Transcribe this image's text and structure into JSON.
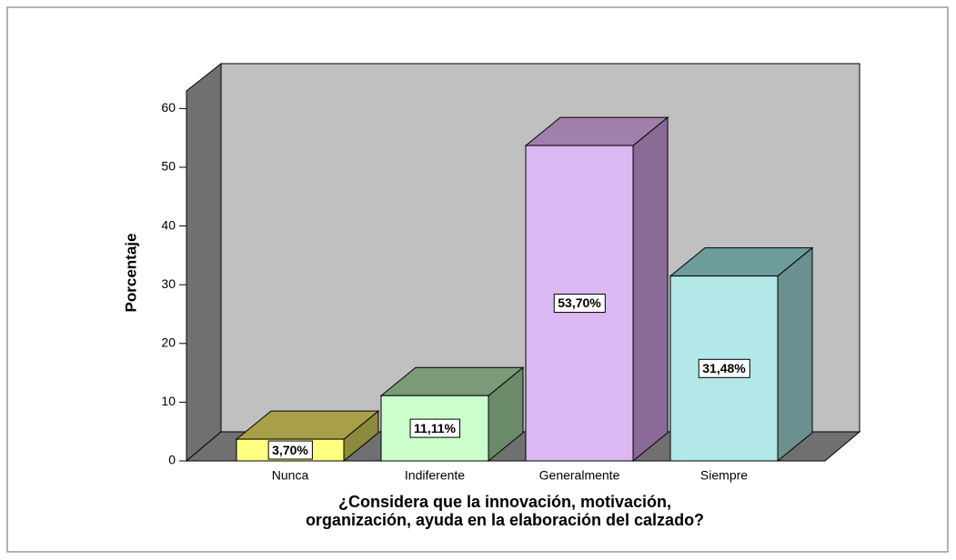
{
  "chart_data": {
    "type": "bar3d",
    "ylabel": "Porcentaje",
    "xlabel": [
      "¿Considera que la innovación, motivación,",
      "organización, ayuda en la elaboración del calzado?"
    ],
    "categories": [
      "Nunca",
      "Indiferente",
      "Generalmente",
      "Siempre"
    ],
    "values": [
      3.7,
      11.11,
      53.7,
      31.48
    ],
    "value_labels": [
      "3,70%",
      "11,11%",
      "53,70%",
      "31,48%"
    ],
    "colors": [
      {
        "front": "#ffff80",
        "top": "#a8a048",
        "side": "#8c8a3c"
      },
      {
        "front": "#ccffcc",
        "top": "#7a9a78",
        "side": "#6a8a6a"
      },
      {
        "front": "#dcb8f2",
        "top": "#a080aa",
        "side": "#8a6a96"
      },
      {
        "front": "#b2e8e8",
        "top": "#6e9c9c",
        "side": "#6a9090"
      }
    ],
    "ylim": [
      0,
      63
    ],
    "yticks": [
      0,
      10,
      20,
      30,
      40,
      50,
      60
    ]
  }
}
